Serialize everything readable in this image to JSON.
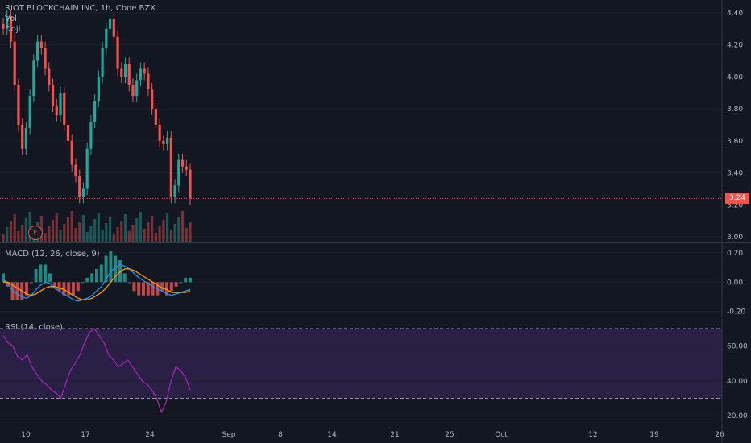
{
  "symbol": {
    "title": "RIOT BLOCKCHAIN INC, 1h, Cboe BZX",
    "indicators": [
      "Vol",
      "Doji"
    ],
    "last_price": "3.24",
    "earnings_badge": "E"
  },
  "macd": {
    "label": "MACD (12, 26, close, 9)"
  },
  "rsi": {
    "label": "RSI (14, close)"
  },
  "colors": {
    "background": "#131722",
    "up": "#26a69a",
    "down": "#ef5350",
    "macd_line": "#2196f3",
    "signal_line": "#ff9800",
    "rsi_line": "#9c27b0",
    "rsi_band": "#2a1f45"
  },
  "chart_data": [
    {
      "type": "candlestick",
      "title": "RIOT BLOCKCHAIN INC, 1h, Cboe BZX",
      "yticks": [
        "4.40",
        "4.20",
        "4.00",
        "3.80",
        "3.60",
        "3.40",
        "3.20",
        "3.00"
      ],
      "ylim": [
        2.96,
        4.48
      ],
      "xticks": [
        "10",
        "17",
        "24",
        "Sep",
        "8",
        "14",
        "21",
        "25",
        "Oct",
        "12",
        "19",
        "26"
      ],
      "close_series": [
        4.3,
        4.38,
        4.22,
        3.95,
        3.7,
        3.55,
        3.68,
        3.88,
        4.1,
        4.22,
        4.18,
        4.05,
        3.95,
        3.82,
        3.76,
        3.9,
        3.7,
        3.6,
        3.45,
        3.38,
        3.25,
        3.3,
        3.55,
        3.72,
        3.85,
        4.0,
        4.18,
        4.3,
        4.36,
        4.25,
        4.05,
        4.0,
        4.08,
        3.95,
        3.88,
        3.98,
        4.05,
        4.02,
        3.92,
        3.8,
        3.7,
        3.6,
        3.58,
        3.62,
        3.25,
        3.32,
        3.48,
        3.44,
        3.42,
        3.24
      ],
      "last": 3.24,
      "grid": true
    },
    {
      "type": "line",
      "title": "MACD (12, 26, close, 9)",
      "yticks": [
        "0.20",
        "0.00",
        "-0.20"
      ],
      "ylim": [
        -0.24,
        0.26
      ],
      "series": [
        {
          "name": "MACD",
          "values": [
            0.02,
            -0.01,
            -0.06,
            -0.08,
            -0.1,
            -0.11,
            -0.09,
            -0.05,
            -0.02,
            0.0,
            -0.01,
            -0.04,
            -0.06,
            -0.08,
            -0.1,
            -0.12,
            -0.13,
            -0.12,
            -0.11,
            -0.09,
            -0.06,
            -0.03,
            0.02,
            0.07,
            0.1,
            0.12,
            0.11,
            0.09,
            0.06,
            0.03,
            0.01,
            -0.01,
            -0.03,
            -0.05,
            -0.06,
            -0.08,
            -0.09,
            -0.08,
            -0.07,
            -0.06,
            -0.05
          ]
        },
        {
          "name": "Signal",
          "values": [
            0.0,
            0.0,
            -0.02,
            -0.04,
            -0.06,
            -0.08,
            -0.09,
            -0.08,
            -0.06,
            -0.04,
            -0.03,
            -0.03,
            -0.04,
            -0.05,
            -0.07,
            -0.09,
            -0.11,
            -0.12,
            -0.12,
            -0.11,
            -0.09,
            -0.07,
            -0.04,
            0.0,
            0.04,
            0.07,
            0.09,
            0.09,
            0.08,
            0.06,
            0.04,
            0.02,
            0.0,
            -0.02,
            -0.04,
            -0.05,
            -0.07,
            -0.07,
            -0.07,
            -0.07,
            -0.06
          ]
        }
      ],
      "grid": true
    },
    {
      "type": "line",
      "title": "RSI (14, close)",
      "yticks": [
        "60.00",
        "40.00",
        "20.00"
      ],
      "ylim": [
        15,
        76
      ],
      "bands": [
        70,
        30
      ],
      "series": [
        {
          "name": "RSI",
          "values": [
            66,
            62,
            60,
            54,
            52,
            55,
            48,
            44,
            40,
            38,
            35,
            33,
            30,
            38,
            46,
            50,
            55,
            62,
            68,
            70,
            66,
            62,
            55,
            52,
            48,
            50,
            52,
            48,
            44,
            40,
            38,
            35,
            30,
            22,
            28,
            40,
            48,
            46,
            42,
            35
          ]
        }
      ],
      "grid": true
    }
  ]
}
